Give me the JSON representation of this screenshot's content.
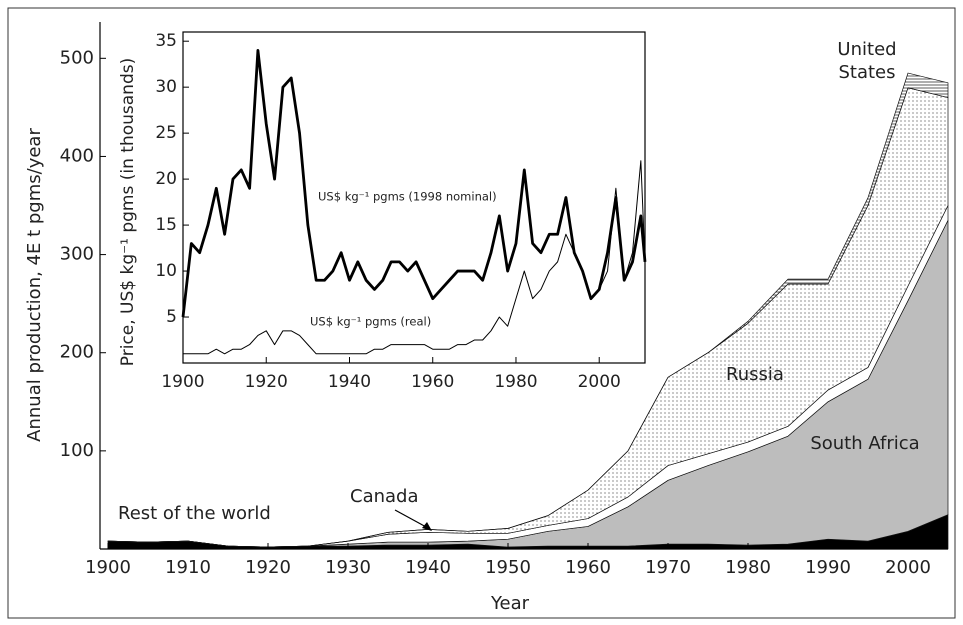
{
  "chart_data": [
    {
      "type": "stacked-area",
      "x_label": "Year",
      "y_label": "Annual production, 4E t pgms/year",
      "x": [
        1900,
        1905,
        1910,
        1915,
        1920,
        1925,
        1930,
        1935,
        1940,
        1945,
        1950,
        1955,
        1960,
        1965,
        1970,
        1975,
        1980,
        1985,
        1990,
        1995,
        2000,
        2005
      ],
      "series": [
        {
          "name": "Rest of the world",
          "color": "#000000",
          "values": [
            8,
            7,
            8,
            3,
            2,
            3,
            3,
            4,
            4,
            5,
            2,
            3,
            3,
            3,
            5,
            5,
            4,
            5,
            10,
            8,
            18,
            35
          ]
        },
        {
          "name": "South Africa",
          "color": "#bdbdbd",
          "values": [
            0,
            0,
            0,
            0,
            0,
            0,
            2,
            3,
            3,
            3,
            8,
            15,
            20,
            40,
            65,
            80,
            95,
            110,
            140,
            165,
            235,
            300
          ]
        },
        {
          "name": "Canada",
          "color": "#ffffff",
          "values": [
            0,
            0,
            0,
            0,
            0,
            0,
            3,
            8,
            10,
            8,
            6,
            6,
            8,
            10,
            15,
            12,
            10,
            10,
            12,
            12,
            15,
            15
          ]
        },
        {
          "name": "Russia",
          "color": "#ffffff",
          "pattern": "dots",
          "values": [
            0,
            0,
            0,
            0,
            0,
            0,
            0,
            2,
            3,
            2,
            5,
            10,
            29,
            47,
            90,
            103,
            121,
            145,
            108,
            165,
            202,
            110
          ]
        },
        {
          "name": "United States",
          "color": "#ffffff",
          "pattern": "hatch",
          "values": [
            0,
            0,
            0,
            0,
            0,
            0,
            0,
            0,
            0,
            0,
            0,
            0,
            0,
            0,
            0,
            0,
            2,
            5,
            5,
            8,
            15,
            15
          ]
        }
      ],
      "xlim": [
        1899,
        2005
      ],
      "xticks": [
        1900,
        1910,
        1920,
        1930,
        1940,
        1950,
        1960,
        1970,
        1980,
        1990,
        2000
      ],
      "ylim": [
        0,
        537
      ],
      "yticks": [
        100,
        200,
        300,
        400,
        500
      ]
    },
    {
      "type": "line",
      "y_label": "Price, US$ kg⁻¹ pgms (in thousands)",
      "x": [
        1900,
        1902,
        1904,
        1906,
        1908,
        1910,
        1912,
        1914,
        1916,
        1918,
        1920,
        1922,
        1924,
        1926,
        1928,
        1930,
        1932,
        1934,
        1936,
        1938,
        1940,
        1942,
        1944,
        1946,
        1948,
        1950,
        1952,
        1954,
        1956,
        1958,
        1960,
        1962,
        1964,
        1966,
        1968,
        1970,
        1972,
        1974,
        1976,
        1978,
        1980,
        1982,
        1984,
        1986,
        1988,
        1990,
        1992,
        1994,
        1996,
        1998,
        2000,
        2002,
        2004,
        2006,
        2008,
        2010,
        2011
      ],
      "series": [
        {
          "name": "US$ kg⁻¹ pgms (1998 nominal)",
          "color": "#000000",
          "values": [
            5,
            13,
            12,
            15,
            19,
            14,
            20,
            21,
            19,
            34,
            26,
            20,
            30,
            31,
            25,
            15,
            9,
            9,
            10,
            12,
            9,
            11,
            9,
            8,
            9,
            11,
            11,
            10,
            11,
            9,
            7,
            8,
            9,
            10,
            10,
            10,
            9,
            12,
            16,
            10,
            13,
            21,
            13,
            12,
            14,
            14,
            18,
            12,
            10,
            7,
            8,
            12,
            18,
            9,
            11,
            16,
            11
          ]
        },
        {
          "name": "US$ kg⁻¹ pgms (real)",
          "color": "#000000",
          "values": [
            1,
            1,
            1,
            1,
            1.5,
            1,
            1.5,
            1.5,
            2,
            3,
            3.5,
            2,
            3.5,
            3.5,
            3,
            2,
            1,
            1,
            1,
            1,
            1,
            1,
            1,
            1.5,
            1.5,
            2,
            2,
            2,
            2,
            2,
            1.5,
            1.5,
            1.5,
            2,
            2,
            2.5,
            2.5,
            3.5,
            5,
            4,
            7,
            10,
            7,
            8,
            10,
            11,
            14,
            12,
            10,
            7,
            8,
            10,
            19,
            9,
            12,
            22,
            11
          ]
        }
      ],
      "xlim": [
        1900,
        2011
      ],
      "xticks": [
        1900,
        1920,
        1940,
        1960,
        1980,
        2000
      ],
      "ylim": [
        0,
        36
      ],
      "yticks": [
        5,
        10,
        15,
        20,
        25,
        30,
        35
      ]
    }
  ]
}
